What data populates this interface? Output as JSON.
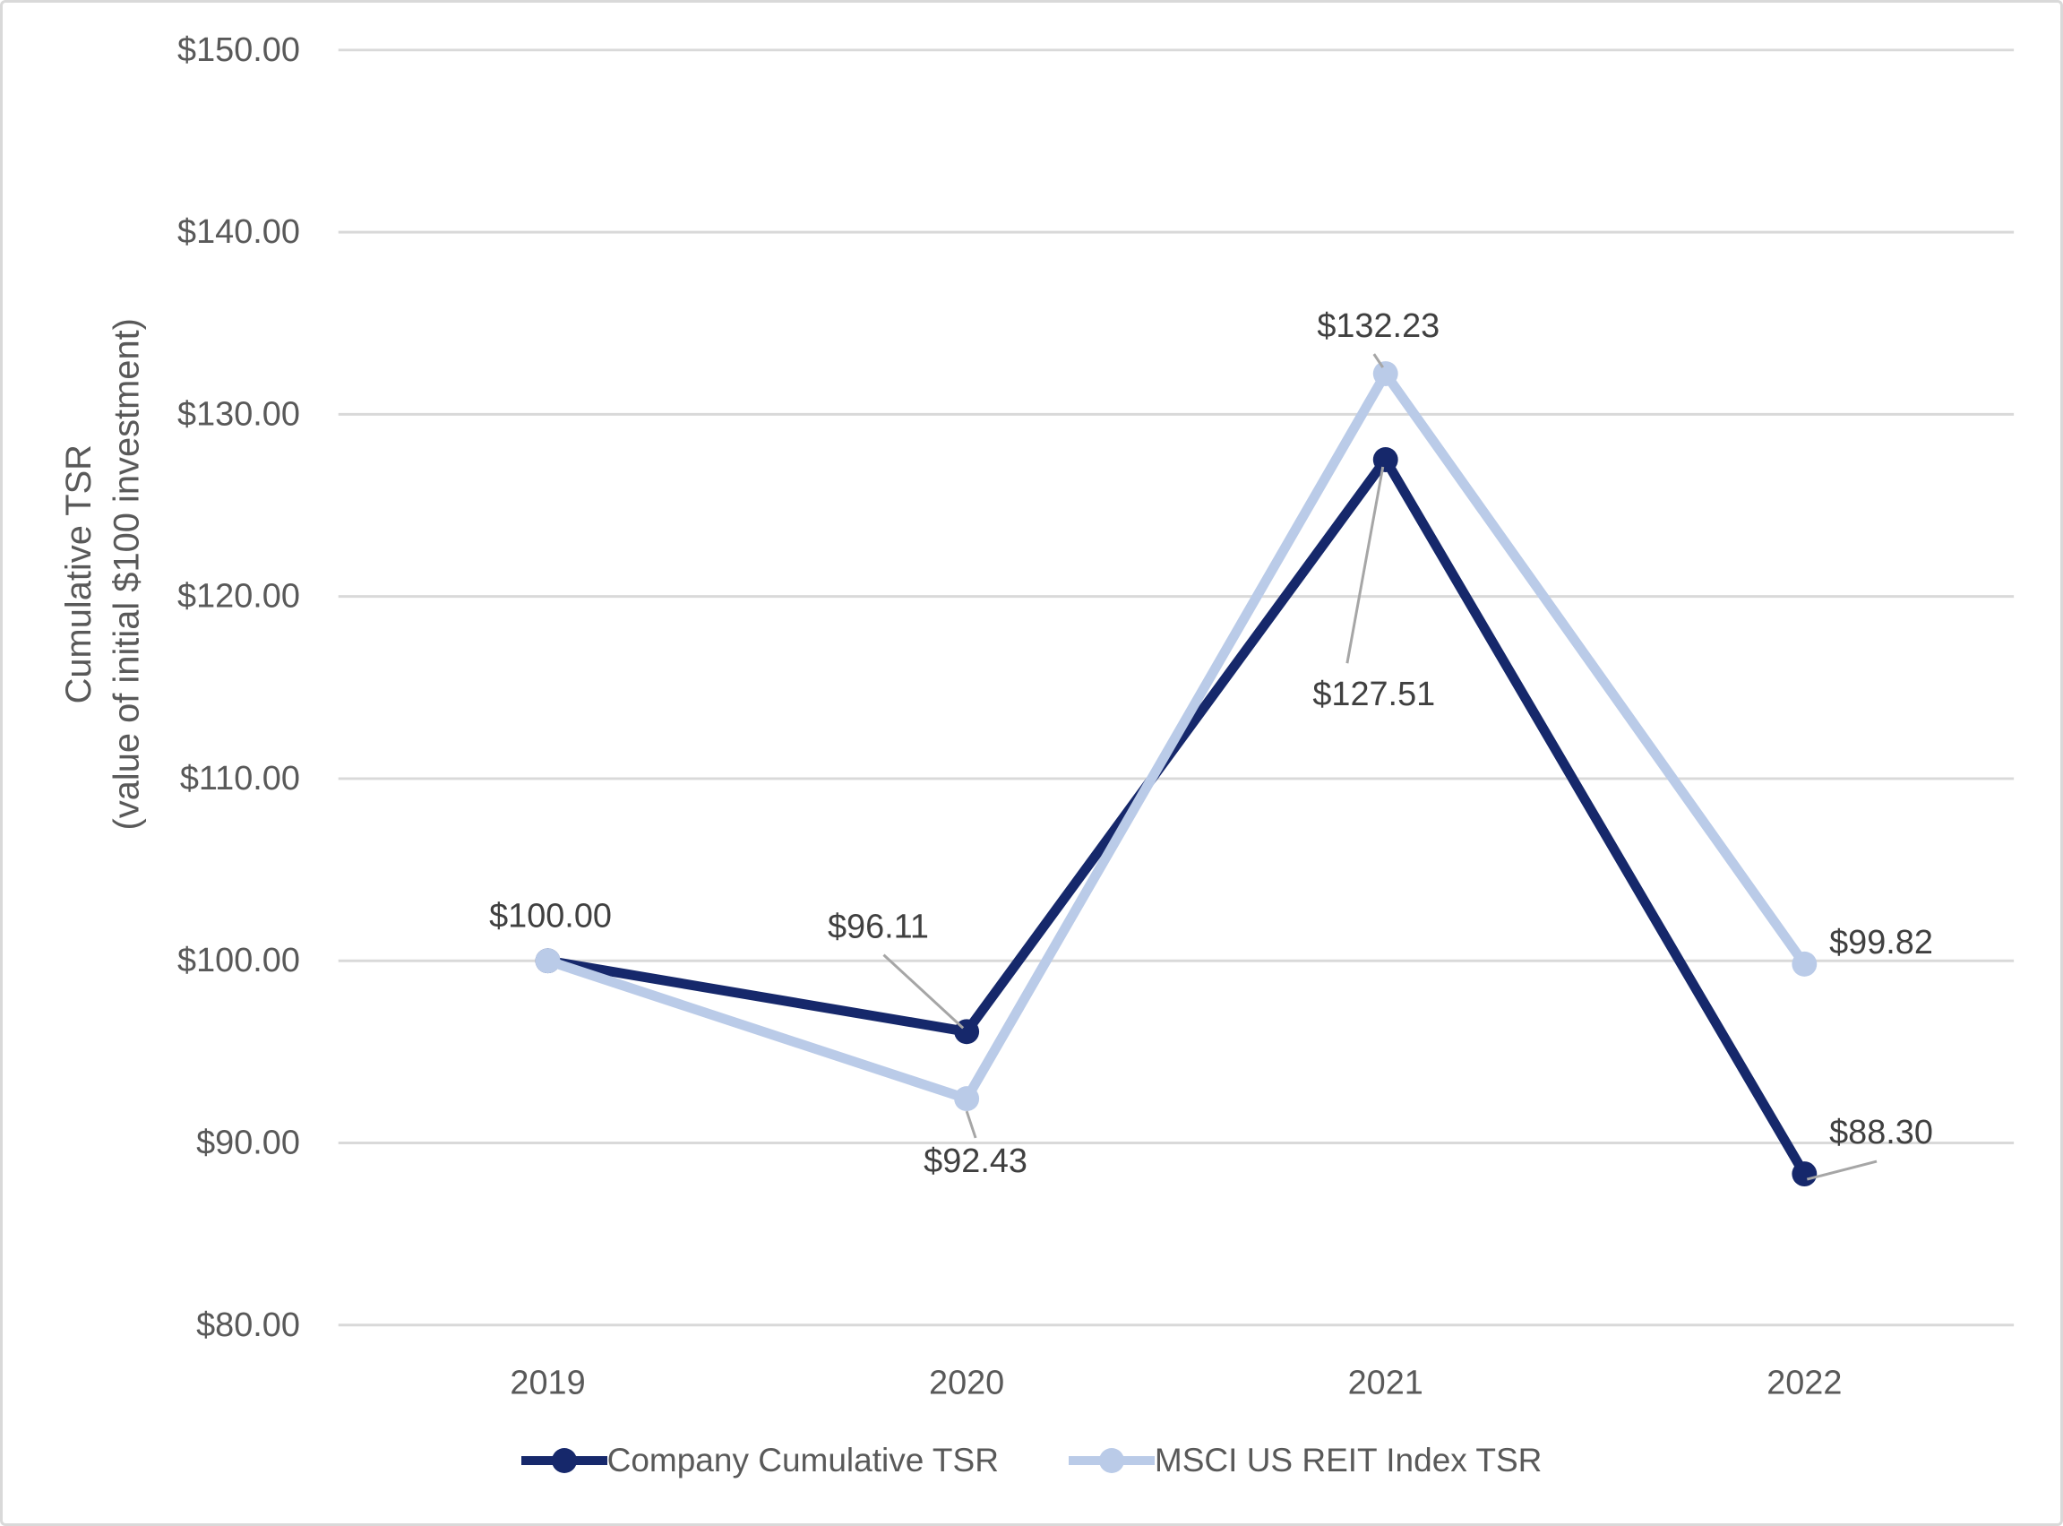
{
  "figure": {
    "background": "#ffffff",
    "border_color": "#d9d9d9"
  },
  "styles": {
    "gridline_color": "#d9d9d9",
    "axis_line_color": "#d9d9d9",
    "tick_label_color": "#595959",
    "axis_title_color": "#595959",
    "data_label_color": "#404040",
    "leader_line_color": "#a6a6a6",
    "legend_text_color": "#595959"
  },
  "chart_data": {
    "type": "line",
    "title": "",
    "categories": [
      "2019",
      "2020",
      "2021",
      "2022"
    ],
    "y_axis": {
      "title_line1": "Cumulative TSR",
      "title_line2": "(value of initial $100 investment)",
      "min": 80,
      "max": 150,
      "step": 10,
      "ticks": [
        {
          "value": 150,
          "label": "$150.00"
        },
        {
          "value": 140,
          "label": "$140.00"
        },
        {
          "value": 130,
          "label": "$130.00"
        },
        {
          "value": 120,
          "label": "$120.00"
        },
        {
          "value": 110,
          "label": "$110.00"
        },
        {
          "value": 100,
          "label": "$100.00"
        },
        {
          "value": 90,
          "label": "$90.00"
        },
        {
          "value": 80,
          "label": "$80.00"
        }
      ]
    },
    "grid": true,
    "legend_position": "bottom",
    "series": [
      {
        "name": "Company Cumulative TSR",
        "color": "#16286b",
        "marker": "circle",
        "values": [
          100.0,
          96.11,
          127.51,
          88.3
        ],
        "point_labels": [
          {
            "text": "$100.00",
            "dx": 3,
            "dy": -50,
            "leader": null
          },
          {
            "text": "$96.11",
            "dx": -99,
            "dy": -117,
            "leader": [
              -93,
              -86,
              -4,
              -4
            ]
          },
          {
            "text": "$127.51",
            "dx": -13,
            "dy": 263,
            "leader": [
              -43,
              228,
              -3,
              8
            ]
          },
          {
            "text": "$88.30",
            "dx": 86,
            "dy": -46,
            "leader": [
              81,
              -14,
              3,
              6
            ]
          }
        ]
      },
      {
        "name": "MSCI US REIT Index TSR",
        "color": "#bacbe8",
        "marker": "circle",
        "values": [
          100.0,
          92.43,
          132.23,
          99.82
        ],
        "point_labels": [
          null,
          {
            "text": "$92.43",
            "dx": 10,
            "dy": 70,
            "leader": [
              10,
              44,
              0,
              14
            ]
          },
          {
            "text": "$132.23",
            "dx": -8,
            "dy": -53,
            "leader": [
              -13,
              -22,
              -3,
              -7
            ]
          },
          {
            "text": "$99.82",
            "dx": 86,
            "dy": -24,
            "leader": null
          }
        ]
      }
    ]
  }
}
